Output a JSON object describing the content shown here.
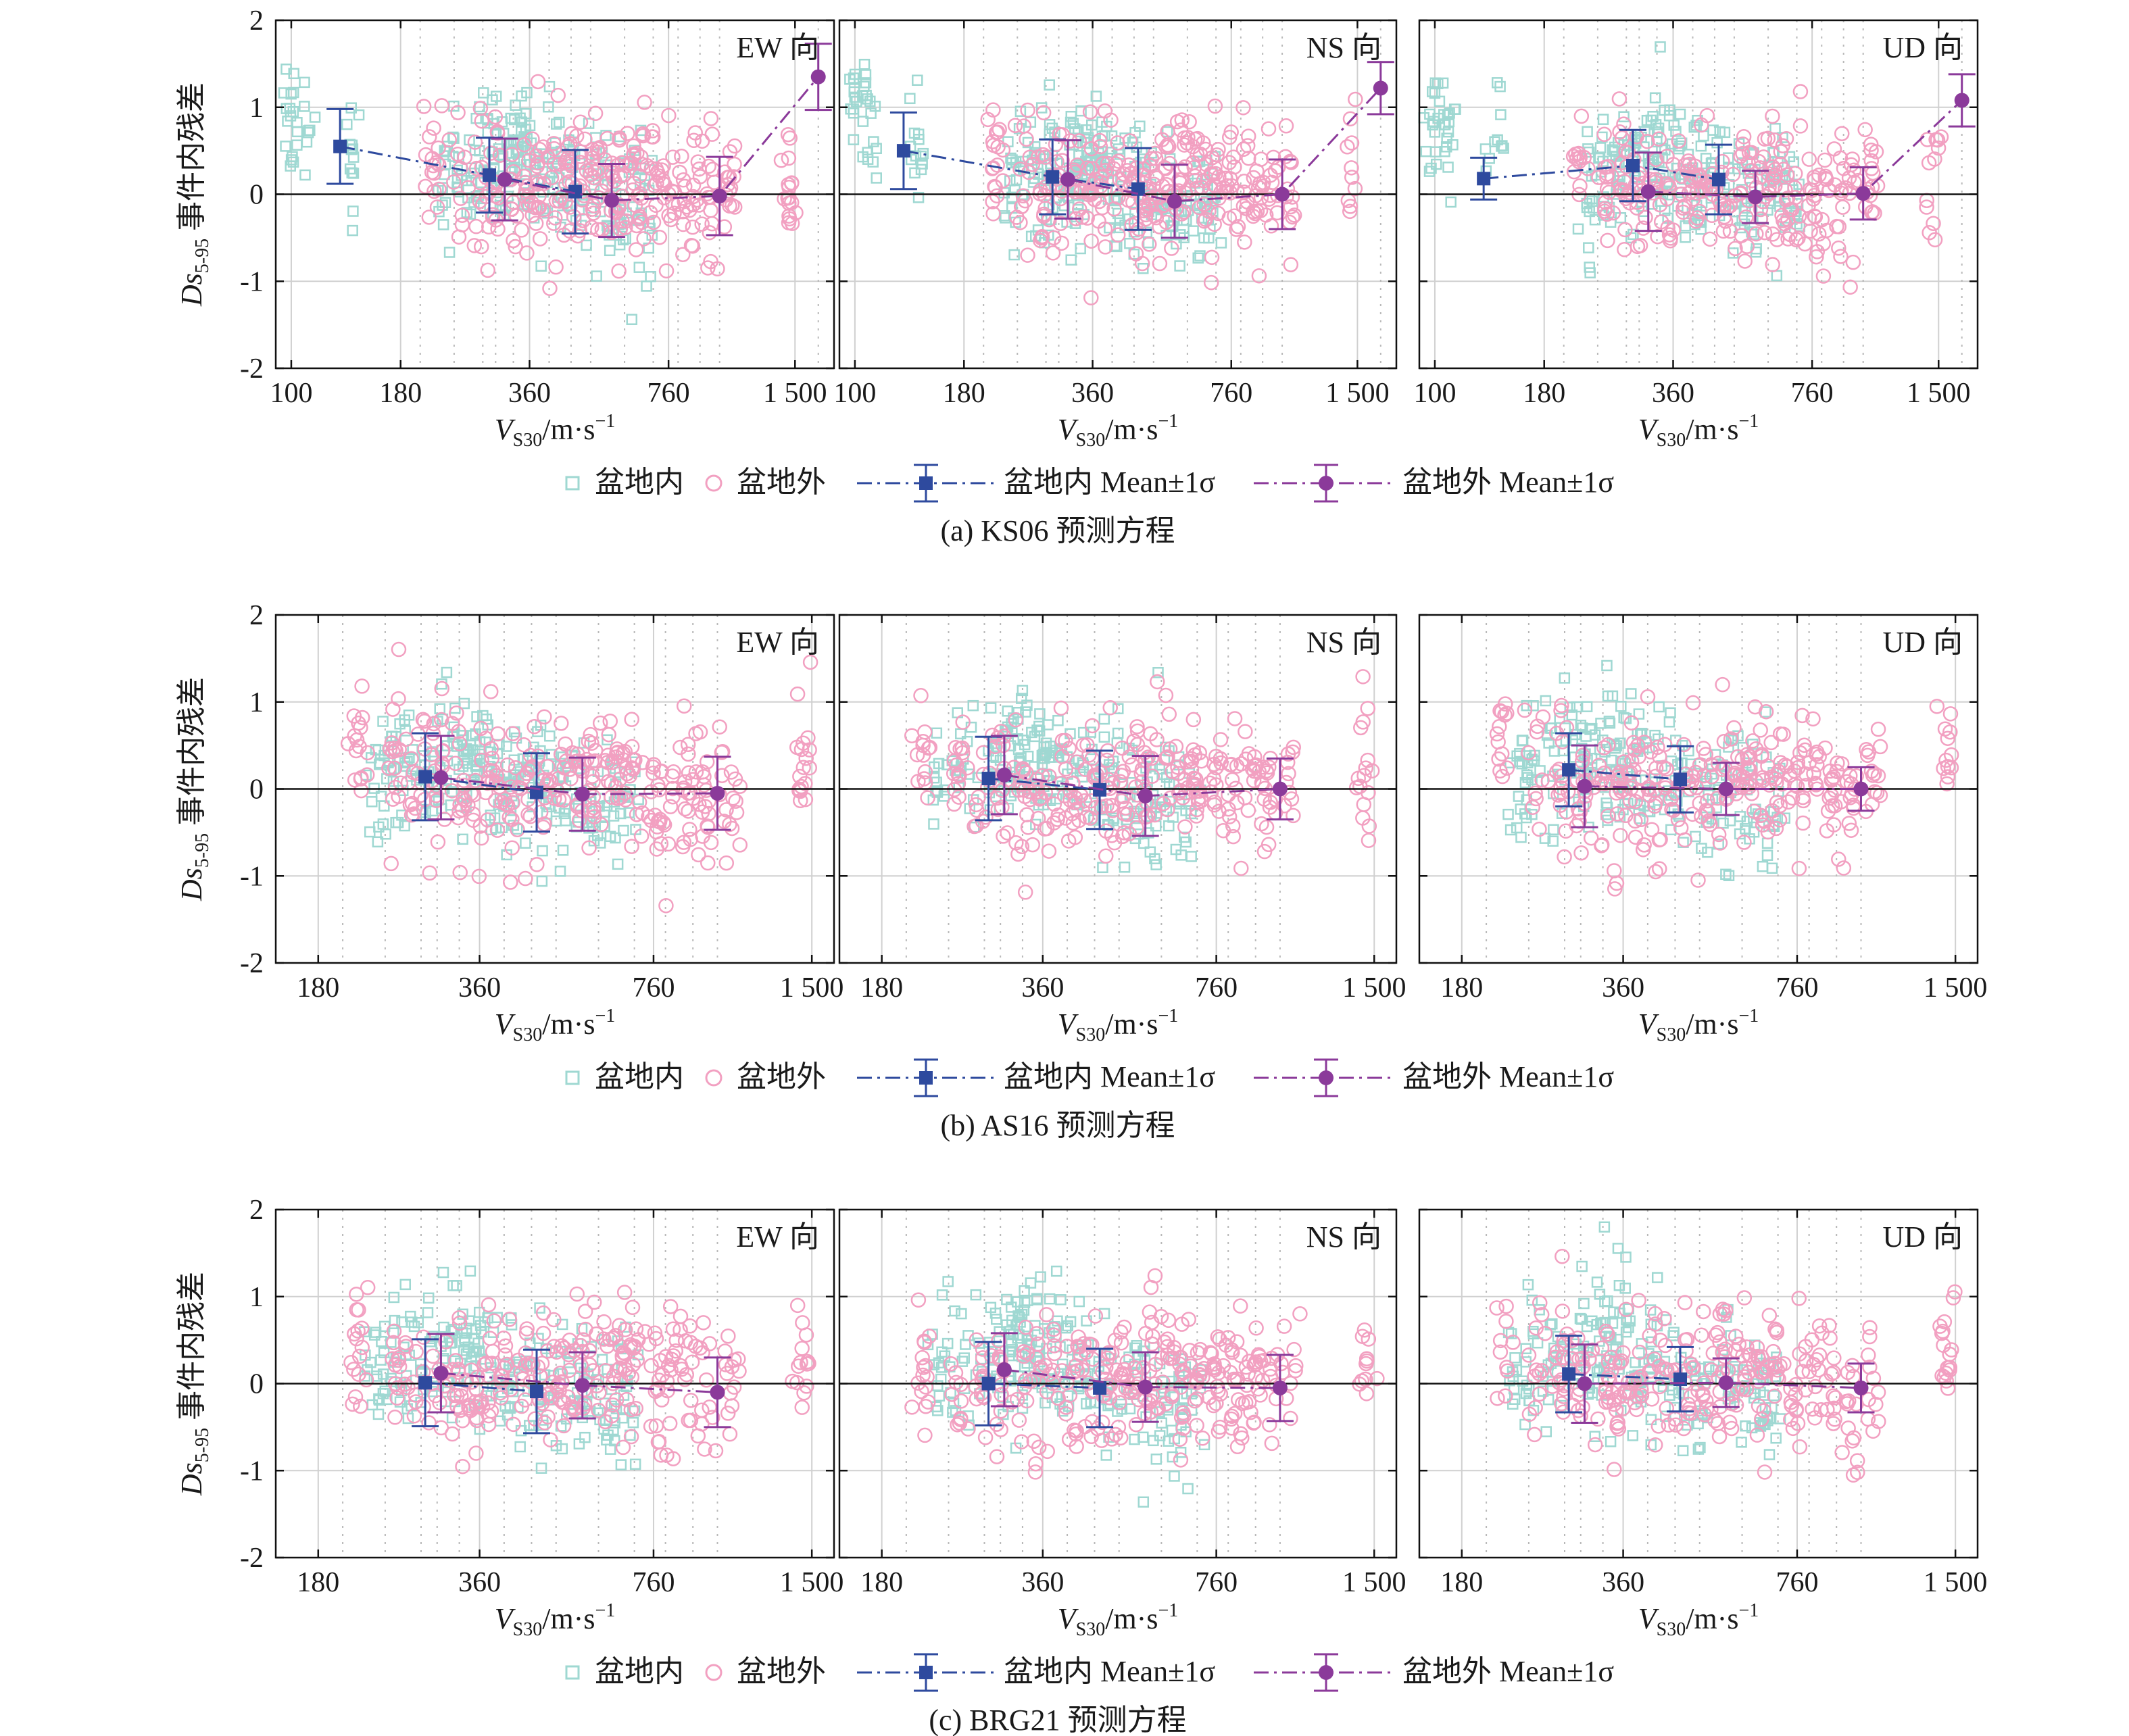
{
  "figure": {
    "legend": {
      "inside": "盆地内",
      "outside": "盆地外",
      "inside_mean": "盆地内 Mean±1σ",
      "outside_mean": "盆地外 Mean±1σ"
    },
    "y_label_main": "Ds",
    "y_label_sub": "5-95",
    "y_label_rest": " 事件内残差",
    "x_label_main": "V",
    "x_label_sub": "S30",
    "x_label_rest": "/m·s",
    "x_label_sup": "−1",
    "directions": [
      "EW 向",
      "NS 向",
      "UD 向"
    ],
    "colors": {
      "inside": "#9fd8d2",
      "outside": "#f2a0c1",
      "inside_mean": "#2e4a9e",
      "outside_mean": "#8b3a9a"
    }
  },
  "chart_data": [
    {
      "type": "scatter",
      "caption": "(a) KS06 预测方程",
      "x_scale": "log",
      "xlim": [
        92,
        1850
      ],
      "ylim": [
        -2,
        2
      ],
      "x_ticks": [
        100,
        180,
        360,
        760,
        1500
      ],
      "x_tick_labels": [
        "100",
        "180",
        "360",
        "760",
        "1 500"
      ],
      "y_ticks": [
        -2,
        -1,
        0,
        1,
        2
      ],
      "grid": true,
      "panels": [
        {
          "direction": "EW 向",
          "inside_mean": [
            {
              "x": 130,
              "y": 0.55,
              "sd": 0.43
            },
            {
              "x": 290,
              "y": 0.22,
              "sd": 0.43
            },
            {
              "x": 460,
              "y": 0.03,
              "sd": 0.48
            }
          ],
          "outside_mean": [
            {
              "x": 315,
              "y": 0.17,
              "sd": 0.47
            },
            {
              "x": 560,
              "y": -0.07,
              "sd": 0.42
            },
            {
              "x": 1000,
              "y": -0.02,
              "sd": 0.45
            },
            {
              "x": 1700,
              "y": 1.35,
              "sd": 0.38
            }
          ]
        },
        {
          "direction": "NS 向",
          "inside_mean": [
            {
              "x": 130,
              "y": 0.5,
              "sd": 0.44
            },
            {
              "x": 290,
              "y": 0.2,
              "sd": 0.43
            },
            {
              "x": 460,
              "y": 0.06,
              "sd": 0.47
            }
          ],
          "outside_mean": [
            {
              "x": 315,
              "y": 0.17,
              "sd": 0.45
            },
            {
              "x": 560,
              "y": -0.08,
              "sd": 0.42
            },
            {
              "x": 1000,
              "y": 0.0,
              "sd": 0.4
            },
            {
              "x": 1700,
              "y": 1.22,
              "sd": 0.3
            }
          ]
        },
        {
          "direction": "UD 向",
          "inside_mean": [
            {
              "x": 130,
              "y": 0.18,
              "sd": 0.24
            },
            {
              "x": 290,
              "y": 0.33,
              "sd": 0.41
            },
            {
              "x": 460,
              "y": 0.17,
              "sd": 0.4
            }
          ],
          "outside_mean": [
            {
              "x": 315,
              "y": 0.03,
              "sd": 0.45
            },
            {
              "x": 560,
              "y": -0.03,
              "sd": 0.3
            },
            {
              "x": 1000,
              "y": 0.01,
              "sd": 0.3
            },
            {
              "x": 1700,
              "y": 1.08,
              "sd": 0.3
            }
          ]
        }
      ]
    },
    {
      "type": "scatter",
      "caption": "(b) AS16 预测方程",
      "x_scale": "log",
      "xlim": [
        150,
        1650
      ],
      "ylim": [
        -2,
        2
      ],
      "x_ticks": [
        180,
        360,
        760,
        1500
      ],
      "x_tick_labels": [
        "180",
        "360",
        "760",
        "1 500"
      ],
      "y_ticks": [
        -2,
        -1,
        0,
        1,
        2
      ],
      "grid": true,
      "panels": [
        {
          "direction": "EW 向",
          "inside_mean": [
            {
              "x": 285,
              "y": 0.14,
              "sd": 0.5
            },
            {
              "x": 460,
              "y": -0.04,
              "sd": 0.45
            }
          ],
          "outside_mean": [
            {
              "x": 305,
              "y": 0.13,
              "sd": 0.48
            },
            {
              "x": 560,
              "y": -0.06,
              "sd": 0.42
            },
            {
              "x": 1000,
              "y": -0.05,
              "sd": 0.42
            }
          ]
        },
        {
          "direction": "NS 向",
          "inside_mean": [
            {
              "x": 285,
              "y": 0.12,
              "sd": 0.48
            },
            {
              "x": 460,
              "y": -0.01,
              "sd": 0.45
            }
          ],
          "outside_mean": [
            {
              "x": 305,
              "y": 0.16,
              "sd": 0.45
            },
            {
              "x": 560,
              "y": -0.08,
              "sd": 0.46
            },
            {
              "x": 1000,
              "y": 0.0,
              "sd": 0.35
            }
          ]
        },
        {
          "direction": "UD 向",
          "inside_mean": [
            {
              "x": 285,
              "y": 0.22,
              "sd": 0.42
            },
            {
              "x": 460,
              "y": 0.11,
              "sd": 0.38
            }
          ],
          "outside_mean": [
            {
              "x": 305,
              "y": 0.03,
              "sd": 0.47
            },
            {
              "x": 560,
              "y": 0.0,
              "sd": 0.3
            },
            {
              "x": 1000,
              "y": 0.0,
              "sd": 0.25
            }
          ]
        }
      ]
    },
    {
      "type": "scatter",
      "caption": "(c) BRG21 预测方程",
      "x_scale": "log",
      "xlim": [
        150,
        1650
      ],
      "ylim": [
        -2,
        2
      ],
      "x_ticks": [
        180,
        360,
        760,
        1500
      ],
      "x_tick_labels": [
        "180",
        "360",
        "760",
        "1 500"
      ],
      "y_ticks": [
        -2,
        -1,
        0,
        1,
        2
      ],
      "grid": true,
      "panels": [
        {
          "direction": "EW 向",
          "inside_mean": [
            {
              "x": 285,
              "y": 0.01,
              "sd": 0.5
            },
            {
              "x": 460,
              "y": -0.09,
              "sd": 0.48
            }
          ],
          "outside_mean": [
            {
              "x": 305,
              "y": 0.12,
              "sd": 0.45
            },
            {
              "x": 560,
              "y": -0.02,
              "sd": 0.38
            },
            {
              "x": 1000,
              "y": -0.1,
              "sd": 0.4
            }
          ]
        },
        {
          "direction": "NS 向",
          "inside_mean": [
            {
              "x": 285,
              "y": 0.0,
              "sd": 0.48
            },
            {
              "x": 460,
              "y": -0.05,
              "sd": 0.45
            }
          ],
          "outside_mean": [
            {
              "x": 305,
              "y": 0.16,
              "sd": 0.42
            },
            {
              "x": 560,
              "y": -0.04,
              "sd": 0.4
            },
            {
              "x": 1000,
              "y": -0.05,
              "sd": 0.38
            }
          ]
        },
        {
          "direction": "UD 向",
          "inside_mean": [
            {
              "x": 285,
              "y": 0.11,
              "sd": 0.44
            },
            {
              "x": 460,
              "y": 0.05,
              "sd": 0.37
            }
          ],
          "outside_mean": [
            {
              "x": 305,
              "y": 0.0,
              "sd": 0.45
            },
            {
              "x": 560,
              "y": 0.01,
              "sd": 0.28
            },
            {
              "x": 1000,
              "y": -0.05,
              "sd": 0.28
            }
          ]
        }
      ]
    }
  ]
}
